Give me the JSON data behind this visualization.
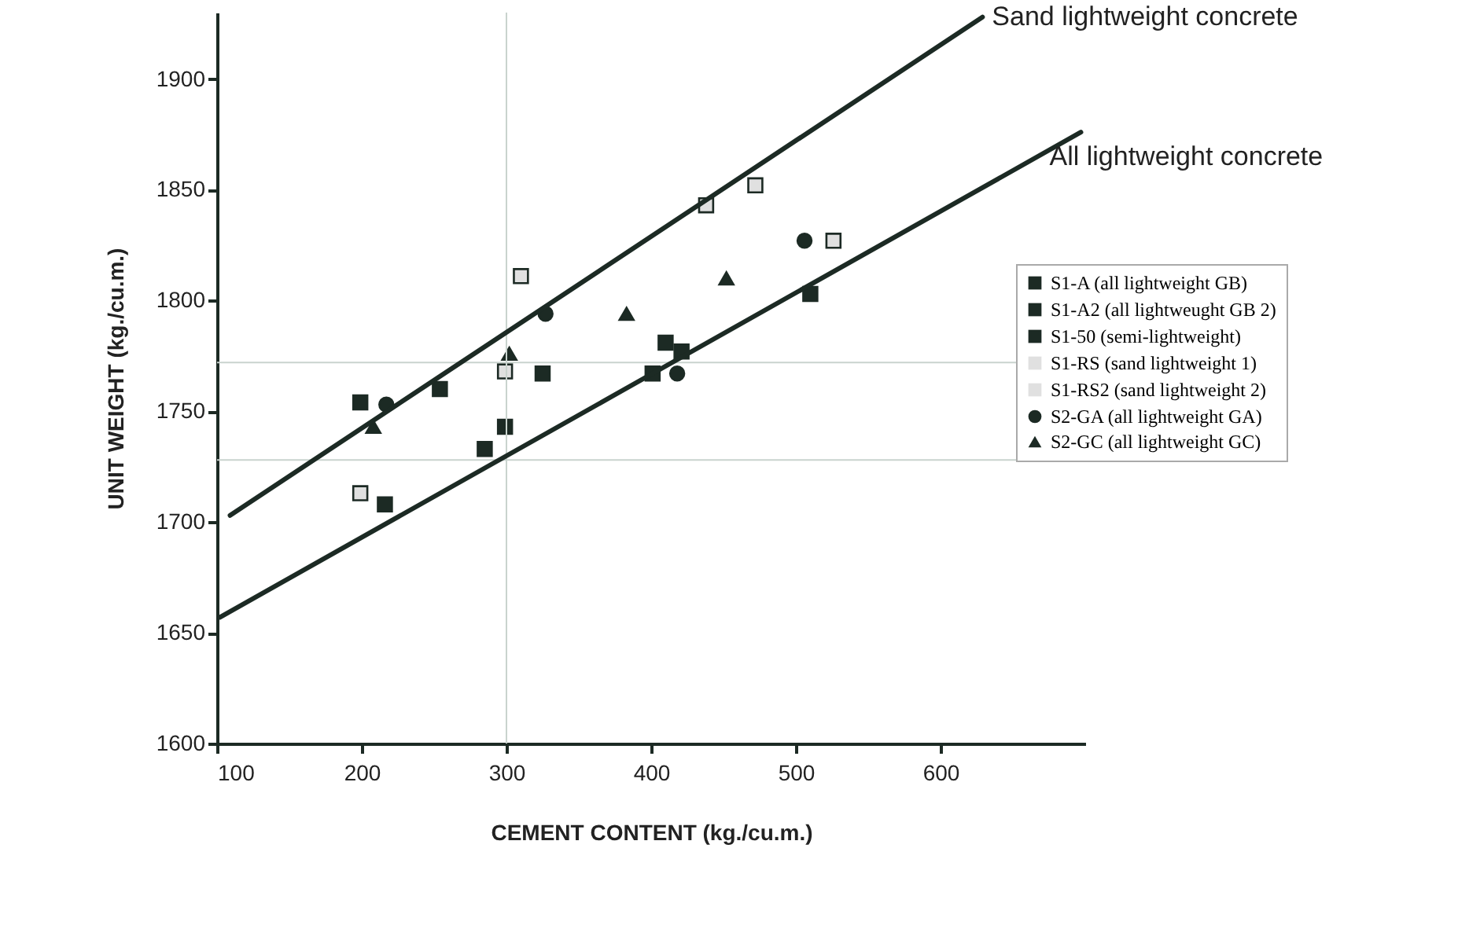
{
  "chart_data": {
    "type": "scatter",
    "xlabel": "CEMENT CONTENT (kg./cu.m.)",
    "ylabel": "UNIT WEIGHT (kg./cu.m.)",
    "xlim": [
      100,
      700
    ],
    "xticks": [
      100,
      200,
      300,
      400,
      500,
      600
    ],
    "ylim": [
      1600,
      1930
    ],
    "yticks": [
      1600,
      1650,
      1700,
      1750,
      1800,
      1850,
      1900
    ],
    "grid": false,
    "legend": "right",
    "ref_lines": [
      {
        "axis": "x",
        "value": 300,
        "color": "#c9d3ce"
      },
      {
        "axis": "y",
        "value": 1772,
        "color": "#c9d3ce"
      },
      {
        "axis": "y",
        "value": 1728,
        "color": "#c9d3ce"
      }
    ],
    "series": [
      {
        "name": "S1-A (all lightweight GB)",
        "marker": "square",
        "color": "#1c2a24",
        "x": [
          199,
          254,
          325,
          510
        ],
        "values": [
          1754,
          1760,
          1767,
          1803
        ]
      },
      {
        "name": "S1-A2 (all lightweught GB 2)",
        "marker": "square",
        "color": "#1c2a24",
        "x": [
          216,
          299,
          410
        ],
        "values": [
          1708,
          1743,
          1781
        ]
      },
      {
        "name": "S1-50 (semi-lightweight)",
        "marker": "square",
        "color": "#1c2a24",
        "x": [
          285,
          401,
          421
        ],
        "values": [
          1733,
          1767,
          1777
        ]
      },
      {
        "name": "S1-RS (sand lightweight 1)",
        "marker": "square",
        "color": "#e0e0e0",
        "x": [
          199,
          310,
          438
        ],
        "values": [
          1713,
          1811,
          1843
        ]
      },
      {
        "name": "S1-RS2 (sand lightweight 2)",
        "marker": "square",
        "color": "#e0e0e0",
        "x": [
          299,
          472,
          526
        ],
        "values": [
          1768,
          1852,
          1827
        ]
      },
      {
        "name": "S2-GA (all lightweight GA)",
        "marker": "circle",
        "color": "#1c2a24",
        "x": [
          217,
          327,
          418,
          506
        ],
        "values": [
          1753,
          1794,
          1767,
          1827
        ]
      },
      {
        "name": "S2-GC (all lightweight GC)",
        "marker": "triangle",
        "color": "#1c2a24",
        "x": [
          208,
          302,
          383,
          452
        ],
        "values": [
          1743,
          1776,
          1794,
          1810
        ]
      },
      {
        "name": "Sand lightweight concrete",
        "type": "line",
        "color": "#1c2a24",
        "x": [
          109,
          629
        ],
        "values": [
          1703,
          1928
        ]
      },
      {
        "name": "All lightweight concrete",
        "type": "line",
        "color": "#1c2a24",
        "x": [
          102,
          697
        ],
        "values": [
          1657,
          1876
        ]
      }
    ]
  }
}
